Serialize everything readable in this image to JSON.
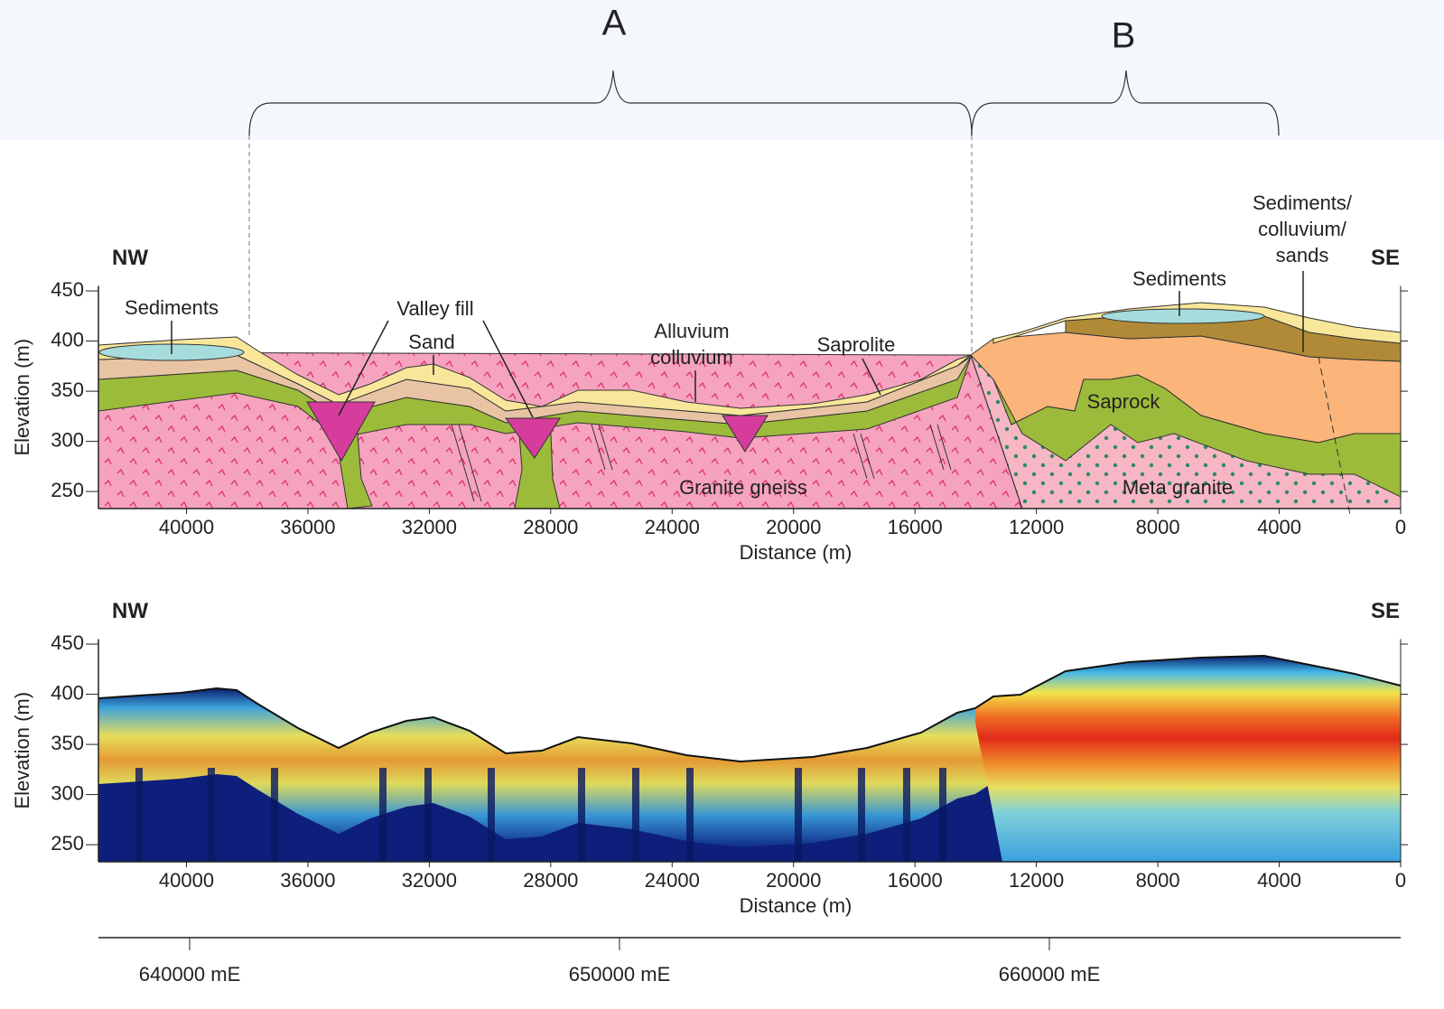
{
  "brackets": [
    "A",
    "B"
  ],
  "panels": [
    {
      "left_label": "NW",
      "right_label": "SE",
      "y_label": "Elevation (m)",
      "x_label": "Distance (m)",
      "xlim": [
        42900,
        0
      ],
      "ylim": [
        233,
        455
      ],
      "xticks": [
        40000,
        36000,
        32000,
        28000,
        24000,
        20000,
        16000,
        12000,
        8000,
        4000,
        0
      ],
      "yticks": [
        250,
        300,
        350,
        400,
        450
      ],
      "annotations": [
        [
          "Sediments"
        ],
        [
          "Valley fill"
        ],
        [
          "Sand"
        ],
        [
          "Alluvium",
          "colluvium"
        ],
        [
          "Saprolite"
        ],
        [
          "Granite gneiss"
        ],
        [
          "Sediments"
        ],
        [
          "Sediments/",
          "colluvium/",
          "sands"
        ],
        [
          "Saprock"
        ],
        [
          "Meta granite"
        ]
      ]
    },
    {
      "left_label": "NW",
      "right_label": "SE",
      "y_label": "Elevation (m)",
      "x_label": "Distance (m)",
      "xlim": [
        42900,
        0
      ],
      "ylim": [
        233,
        455
      ],
      "xticks": [
        40000,
        36000,
        32000,
        28000,
        24000,
        20000,
        16000,
        12000,
        8000,
        4000,
        0
      ],
      "yticks": [
        250,
        300,
        350,
        400,
        450
      ]
    }
  ],
  "easting": {
    "xlim": [
      637878,
      668172
    ],
    "ticks": [
      {
        "value": 640000,
        "label": "640000 mE"
      },
      {
        "value": 650000,
        "label": "650000 mE"
      },
      {
        "value": 660000,
        "label": "660000 mE"
      }
    ]
  }
}
